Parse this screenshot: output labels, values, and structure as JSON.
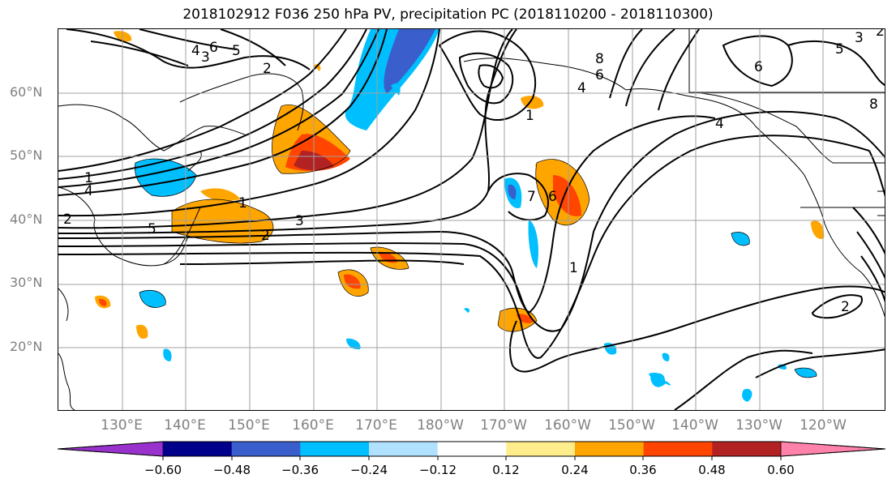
{
  "title": "2018102912 F036 250 hPa PV, precipitation PC (2018110200 - 2018110300)",
  "lat_labels": [
    "60°N",
    "50°N",
    "40°N",
    "30°N",
    "20°N"
  ],
  "lon_labels": [
    "130°E",
    "140°E",
    "150°E",
    "160°E",
    "170°E",
    "180°W",
    "170°W",
    "160°W",
    "150°W",
    "140°W",
    "130°W",
    "120°W"
  ],
  "pv_contour_labels": [
    "6",
    "5",
    "4",
    "3",
    "2",
    "1",
    "1",
    "4",
    "5",
    "2",
    "3",
    "2",
    "1",
    "7",
    "6",
    "8",
    "6",
    "4",
    "2",
    "1",
    "4",
    "6",
    "5",
    "3",
    "2",
    "8"
  ],
  "colorbar": {
    "tick_labels": [
      "−0.60",
      "−0.48",
      "−0.36",
      "−0.24",
      "−0.12",
      "0.12",
      "0.24",
      "0.36",
      "0.48",
      "0.60"
    ],
    "colors": [
      "#9932cc",
      "#00008b",
      "#3a5fcd",
      "#00bfff",
      "#b0e2ff",
      "#ffffff",
      "#ffec8b",
      "#ffa500",
      "#ff4500",
      "#b22222",
      "#ff82ab"
    ]
  }
}
